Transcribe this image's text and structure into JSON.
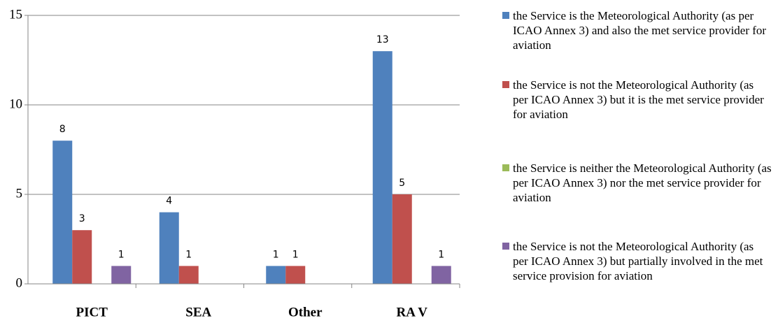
{
  "chart_data": {
    "type": "bar",
    "categories": [
      "PICT",
      "SEA",
      "Other",
      "RA V"
    ],
    "series": [
      {
        "name": "the Service is the Meteorological Authority (as per ICAO Annex 3) and also the met service provider for aviation",
        "color": "#4f81bd",
        "values": [
          8,
          4,
          1,
          13
        ]
      },
      {
        "name": "the Service is not the Meteorological Authority (as per ICAO Annex 3) but it is the met service provider for aviation",
        "color": "#c0504d",
        "values": [
          3,
          1,
          1,
          5
        ]
      },
      {
        "name": "the Service is neither the Meteorological Authority (as per ICAO Annex 3) nor the met service provider for aviation",
        "color": "#9bbb59",
        "values": [
          null,
          null,
          null,
          null
        ]
      },
      {
        "name": "the Service is not the Meteorological Authority (as per ICAO Annex 3) but partially involved in the met service provision for aviation",
        "color": "#8064a2",
        "values": [
          1,
          null,
          null,
          1
        ]
      }
    ],
    "ylim": [
      0,
      15
    ],
    "yticks": [
      0,
      5,
      10,
      15
    ],
    "grid": true,
    "legend": "right"
  }
}
